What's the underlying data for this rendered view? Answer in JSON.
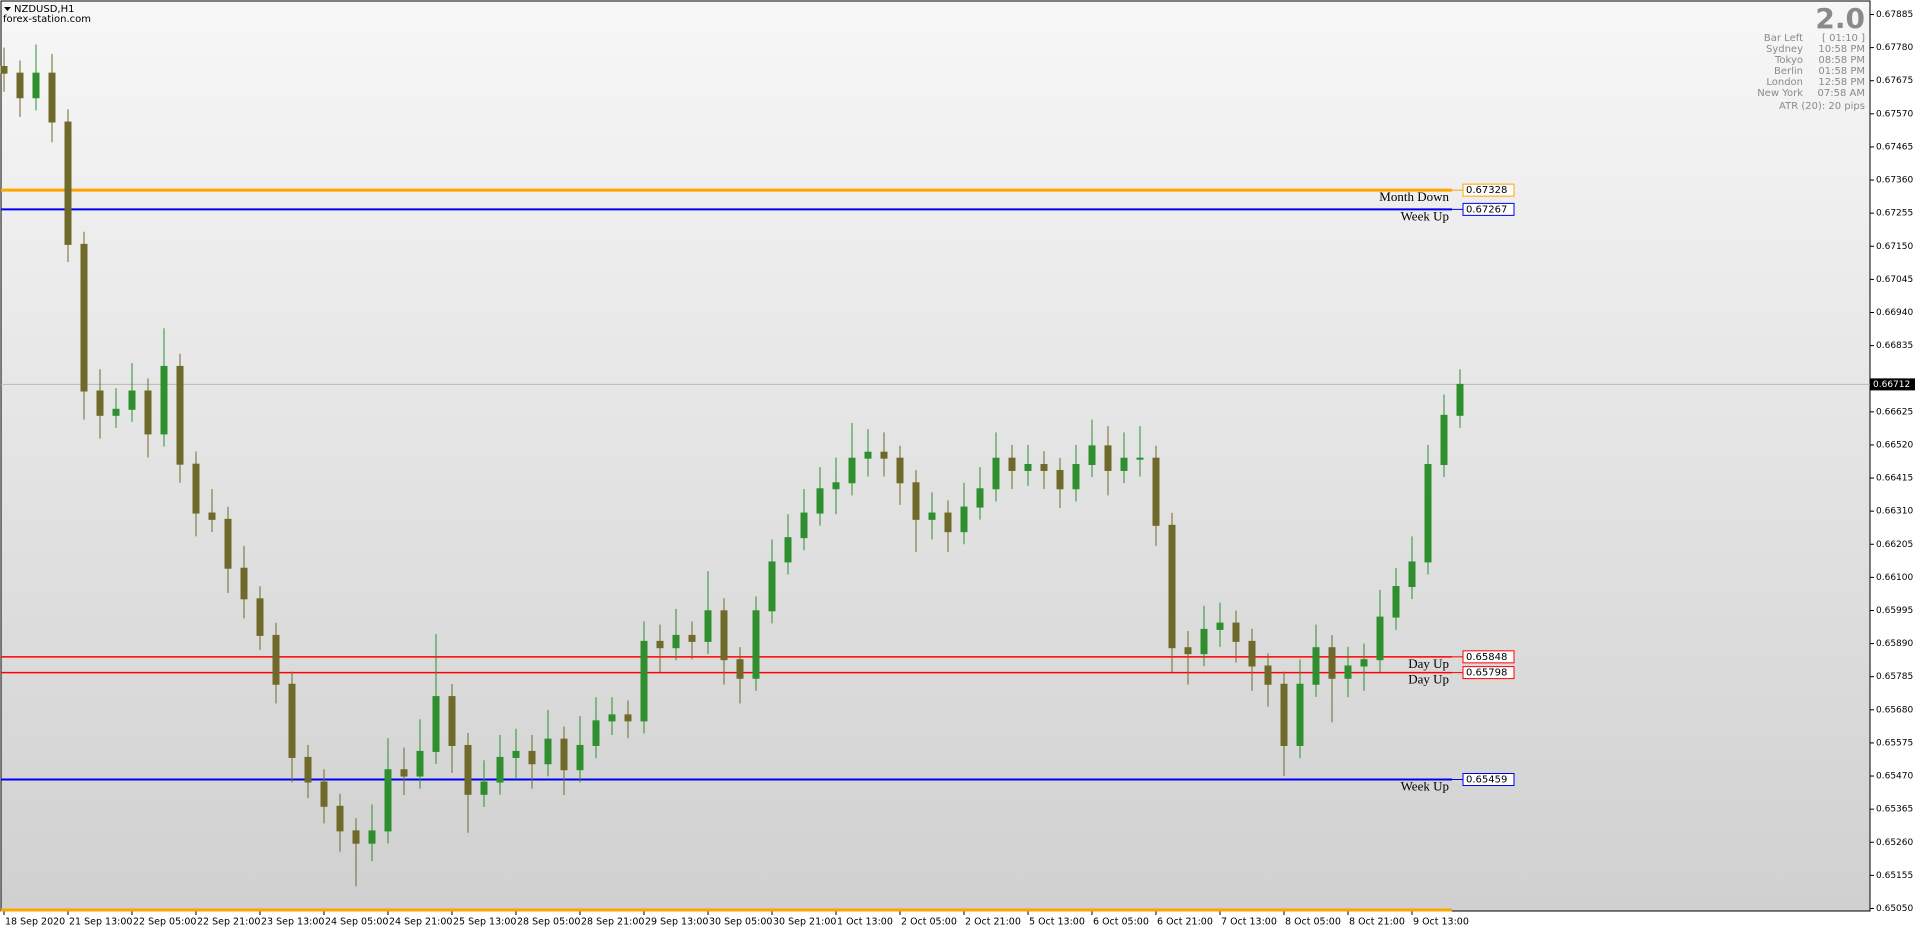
{
  "chart_data": {
    "type": "candlestick",
    "title": "NZDUSD,H1",
    "subtitle": "forex-station.com",
    "up_color": "#2f8f2f",
    "down_color": "#6f6a2a",
    "ylim": [
      0.65042,
      0.67931
    ],
    "yticks": [
      0.67885,
      {
        "value": 0.6778,
        "label": "0.67780"
      },
      0.67675,
      {
        "value": 0.6757,
        "label": "0.67570"
      },
      0.67465,
      {
        "value": 0.6736,
        "label": "0.67360"
      },
      0.67255,
      {
        "value": 0.6715,
        "label": "0.67150"
      },
      0.67045,
      {
        "value": 0.6694,
        "label": "0.66940"
      },
      0.66835,
      0.66625,
      {
        "value": 0.6652,
        "label": "0.66520"
      },
      0.66415,
      {
        "value": 0.6631,
        "label": "0.66310"
      },
      0.66205,
      {
        "value": 0.661,
        "label": "0.66100"
      },
      0.65995,
      {
        "value": 0.6589,
        "label": "0.65890"
      },
      0.65785,
      {
        "value": 0.6568,
        "label": "0.65680"
      },
      0.65575,
      {
        "value": 0.6547,
        "label": "0.65470"
      },
      0.65365,
      {
        "value": 0.6526,
        "label": "0.65260"
      },
      0.65155,
      {
        "value": 0.6505,
        "label": "0.65050"
      }
    ],
    "x_labels": [
      "18 Sep 2020",
      "21 Sep 13:00",
      "22 Sep 05:00",
      "22 Sep 21:00",
      "23 Sep 13:00",
      "24 Sep 05:00",
      "24 Sep 21:00",
      "25 Sep 13:00",
      "28 Sep 05:00",
      "28 Sep 21:00",
      "29 Sep 13:00",
      "30 Sep 05:00",
      "30 Sep 21:00",
      "1 Oct 13:00",
      "2 Oct 05:00",
      "2 Oct 21:00",
      "5 Oct 13:00",
      "6 Oct 05:00",
      "6 Oct 21:00",
      "7 Oct 13:00",
      "8 Oct 05:00",
      "8 Oct 21:00",
      "9 Oct 13:00"
    ],
    "candles": [
      [
        0.6772,
        0.6778,
        0.6764,
        0.67699
      ],
      [
        0.67699,
        0.67739,
        0.6756,
        0.67621
      ],
      [
        0.67621,
        0.6779,
        0.67581,
        0.67699
      ],
      [
        0.67699,
        0.6776,
        0.6748,
        0.67544
      ],
      [
        0.67544,
        0.67584,
        0.671,
        0.67156
      ],
      [
        0.67156,
        0.67196,
        0.666,
        0.66691
      ],
      [
        0.66691,
        0.6676,
        0.6654,
        0.66614
      ],
      [
        0.66614,
        0.667,
        0.66574,
        0.66633
      ],
      [
        0.66633,
        0.6678,
        0.66593,
        0.66691
      ],
      [
        0.66691,
        0.66731,
        0.6648,
        0.66555
      ],
      [
        0.66555,
        0.6689,
        0.66515,
        0.66769
      ],
      [
        0.66769,
        0.66809,
        0.664,
        0.66459
      ],
      [
        0.66459,
        0.66499,
        0.6623,
        0.66304
      ],
      [
        0.66304,
        0.6638,
        0.66244,
        0.66284
      ],
      [
        0.66284,
        0.66324,
        0.6605,
        0.66129
      ],
      [
        0.66129,
        0.662,
        0.6597,
        0.66032
      ],
      [
        0.66032,
        0.66072,
        0.6587,
        0.65916
      ],
      [
        0.65916,
        0.65956,
        0.657,
        0.65761
      ],
      [
        0.65761,
        0.65801,
        0.6545,
        0.65529
      ],
      [
        0.65529,
        0.65569,
        0.654,
        0.65451
      ],
      [
        0.65451,
        0.65491,
        0.6532,
        0.65374
      ],
      [
        0.65374,
        0.65414,
        0.6523,
        0.65296
      ],
      [
        0.65296,
        0.65336,
        0.6512,
        0.65257
      ],
      [
        0.65257,
        0.6538,
        0.652,
        0.65296
      ],
      [
        0.65296,
        0.6559,
        0.65256,
        0.6549
      ],
      [
        0.6549,
        0.6556,
        0.6541,
        0.6547
      ],
      [
        0.6547,
        0.6565,
        0.6543,
        0.65548
      ],
      [
        0.65548,
        0.6592,
        0.65508,
        0.65722
      ],
      [
        0.65722,
        0.65762,
        0.6548,
        0.65567
      ],
      [
        0.65567,
        0.65607,
        0.6529,
        0.65412
      ],
      [
        0.65412,
        0.6552,
        0.65372,
        0.65451
      ],
      [
        0.65451,
        0.656,
        0.65411,
        0.65529
      ],
      [
        0.65529,
        0.6562,
        0.6546,
        0.65548
      ],
      [
        0.65548,
        0.656,
        0.6543,
        0.65509
      ],
      [
        0.65509,
        0.6568,
        0.65469,
        0.65587
      ],
      [
        0.65587,
        0.65627,
        0.6541,
        0.6549
      ],
      [
        0.6549,
        0.6566,
        0.6545,
        0.65567
      ],
      [
        0.65567,
        0.6572,
        0.65527,
        0.65645
      ],
      [
        0.65645,
        0.6572,
        0.656,
        0.65664
      ],
      [
        0.65664,
        0.6571,
        0.6559,
        0.65645
      ],
      [
        0.65645,
        0.6596,
        0.65605,
        0.65897
      ],
      [
        0.65897,
        0.6595,
        0.658,
        0.65877
      ],
      [
        0.65877,
        0.66,
        0.65837,
        0.65916
      ],
      [
        0.65916,
        0.6596,
        0.6584,
        0.65897
      ],
      [
        0.65897,
        0.6612,
        0.65857,
        0.65994
      ],
      [
        0.65994,
        0.66034,
        0.6576,
        0.65839
      ],
      [
        0.65839,
        0.65879,
        0.657,
        0.6578
      ],
      [
        0.6578,
        0.6604,
        0.6574,
        0.65994
      ],
      [
        0.65994,
        0.6622,
        0.65954,
        0.66149
      ],
      [
        0.66149,
        0.663,
        0.66109,
        0.66226
      ],
      [
        0.66226,
        0.6638,
        0.66186,
        0.66304
      ],
      [
        0.66304,
        0.6645,
        0.66264,
        0.66381
      ],
      [
        0.66381,
        0.6648,
        0.663,
        0.664
      ],
      [
        0.664,
        0.6659,
        0.6636,
        0.66478
      ],
      [
        0.66478,
        0.6657,
        0.6642,
        0.66497
      ],
      [
        0.66497,
        0.6656,
        0.6642,
        0.66478
      ],
      [
        0.66478,
        0.66518,
        0.6633,
        0.664
      ],
      [
        0.664,
        0.6644,
        0.6618,
        0.66284
      ],
      [
        0.66284,
        0.6637,
        0.6622,
        0.66304
      ],
      [
        0.66304,
        0.66344,
        0.6618,
        0.66245
      ],
      [
        0.66245,
        0.664,
        0.66205,
        0.66323
      ],
      [
        0.66323,
        0.6645,
        0.66283,
        0.66381
      ],
      [
        0.66381,
        0.6656,
        0.66341,
        0.66478
      ],
      [
        0.66478,
        0.6652,
        0.6638,
        0.66439
      ],
      [
        0.66439,
        0.6652,
        0.6639,
        0.66458
      ],
      [
        0.66458,
        0.665,
        0.6638,
        0.66439
      ],
      [
        0.66439,
        0.66479,
        0.6632,
        0.66381
      ],
      [
        0.66381,
        0.6652,
        0.66341,
        0.66458
      ],
      [
        0.66458,
        0.666,
        0.66418,
        0.66517
      ],
      [
        0.66517,
        0.6658,
        0.6636,
        0.66439
      ],
      [
        0.66439,
        0.6656,
        0.66399,
        0.66478
      ],
      [
        0.66478,
        0.6658,
        0.6642,
        0.66478
      ],
      [
        0.66478,
        0.66518,
        0.662,
        0.66265
      ],
      [
        0.66265,
        0.66305,
        0.658,
        0.65877
      ],
      [
        0.65877,
        0.6593,
        0.6576,
        0.65858
      ],
      [
        0.65858,
        0.6601,
        0.65818,
        0.65935
      ],
      [
        0.65935,
        0.6602,
        0.6588,
        0.65955
      ],
      [
        0.65955,
        0.65995,
        0.6583,
        0.65897
      ],
      [
        0.65897,
        0.65937,
        0.6574,
        0.65819
      ],
      [
        0.65819,
        0.65859,
        0.6569,
        0.65761
      ],
      [
        0.65761,
        0.65801,
        0.6547,
        0.65567
      ],
      [
        0.65567,
        0.6584,
        0.65527,
        0.65761
      ],
      [
        0.65761,
        0.6595,
        0.65721,
        0.65877
      ],
      [
        0.65877,
        0.65917,
        0.6564,
        0.6578
      ],
      [
        0.6578,
        0.6588,
        0.6572,
        0.65819
      ],
      [
        0.65819,
        0.6589,
        0.6574,
        0.65839
      ],
      [
        0.65839,
        0.6606,
        0.65799,
        0.65974
      ],
      [
        0.65974,
        0.6613,
        0.65934,
        0.66071
      ],
      [
        0.66071,
        0.6623,
        0.66031,
        0.66149
      ],
      [
        0.66149,
        0.6652,
        0.66109,
        0.66458
      ],
      [
        0.66458,
        0.6668,
        0.66418,
        0.66614
      ],
      [
        0.66614,
        0.6676,
        0.66574,
        0.66712
      ]
    ],
    "levels": [
      {
        "name": "Month Down",
        "value": 0.67328,
        "color": "#ffa500",
        "width": 3
      },
      {
        "name": "Week Up",
        "value": 0.67267,
        "color": "#0000ee",
        "width": 2
      },
      {
        "name": "Day Up",
        "value": 0.65848,
        "color": "#ff0000",
        "width": 1.5
      },
      {
        "name": "Day Up",
        "value": 0.65798,
        "color": "#ff0000",
        "width": 1.5
      },
      {
        "name": "Week Up",
        "value": 0.65459,
        "color": "#0000ee",
        "width": 2
      },
      {
        "value": 0.65045,
        "color": "#ffa500",
        "width": 3
      }
    ],
    "current_price": 0.66712,
    "info": {
      "version": "2.0",
      "rows": [
        [
          "Bar Left",
          "[ 01:10 ]"
        ],
        [
          "Sydney",
          "10:58 PM"
        ],
        [
          "Tokyo",
          "08:58 PM"
        ],
        [
          "Berlin",
          "01:58 PM"
        ],
        [
          "London",
          "12:58 PM"
        ],
        [
          "New York",
          "07:58 AM"
        ]
      ],
      "atr": "ATR (20): 20 pips"
    }
  }
}
